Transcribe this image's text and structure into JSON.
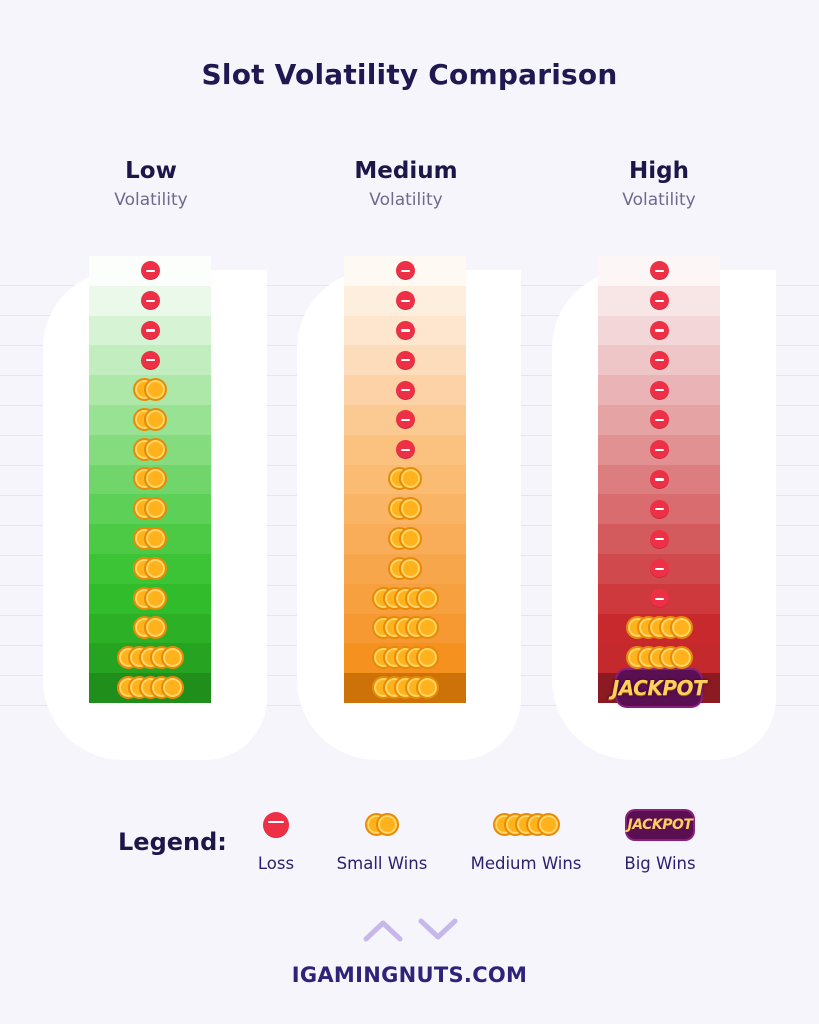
{
  "title": "Slot Volatility Comparison",
  "columns": [
    {
      "name": "Low",
      "subtitle": "Volatility",
      "colors": [
        "#fbfefb",
        "#eaf9e9",
        "#d6f4d4",
        "#c2eebf",
        "#ade8a9",
        "#98e294",
        "#84dc7f",
        "#70d66b",
        "#5dd057",
        "#4cca45",
        "#3cc436",
        "#31bd2b",
        "#2cb126",
        "#27a322",
        "#1f8e1b"
      ],
      "rows": [
        "loss",
        "loss",
        "loss",
        "loss",
        "small",
        "small",
        "small",
        "small",
        "small",
        "small",
        "small",
        "small",
        "small",
        "medium",
        "medium"
      ]
    },
    {
      "name": "Medium",
      "subtitle": "Volatility",
      "colors": [
        "#fef9f3",
        "#fdeedd",
        "#fde6cd",
        "#fcdcba",
        "#fcd2a6",
        "#fbc992",
        "#fbc17f",
        "#fabb73",
        "#f9b466",
        "#f9ad59",
        "#f8a64b",
        "#f7a03f",
        "#f69933",
        "#f4911f",
        "#cc7208"
      ],
      "rows": [
        "loss",
        "loss",
        "loss",
        "loss",
        "loss",
        "loss",
        "loss",
        "small",
        "small",
        "small",
        "small",
        "medium",
        "medium",
        "medium",
        "medium"
      ]
    },
    {
      "name": "High",
      "subtitle": "Volatility",
      "colors": [
        "#fdf6f6",
        "#f8e6e6",
        "#f3d6d7",
        "#efc6c7",
        "#eab4b6",
        "#e6a3a4",
        "#e19192",
        "#dc7e80",
        "#d86c6e",
        "#d45b5d",
        "#d0494c",
        "#cd393d",
        "#c8292d",
        "#c4292d",
        "#8b1a23"
      ],
      "rows": [
        "loss",
        "loss",
        "loss",
        "loss",
        "loss",
        "loss",
        "loss",
        "loss",
        "loss",
        "loss",
        "loss",
        "loss",
        "medium",
        "medium",
        "jackpot"
      ]
    }
  ],
  "jackpot_text": "JACKPOT",
  "legend": {
    "title": "Legend:",
    "items": [
      {
        "icon": "loss",
        "label": "Loss"
      },
      {
        "icon": "small",
        "label": "Small Wins"
      },
      {
        "icon": "medium",
        "label": "Medium Wins"
      },
      {
        "icon": "jackpot",
        "label": "Big Wins"
      }
    ]
  },
  "brand": "IGAMINGNUTS.COM"
}
